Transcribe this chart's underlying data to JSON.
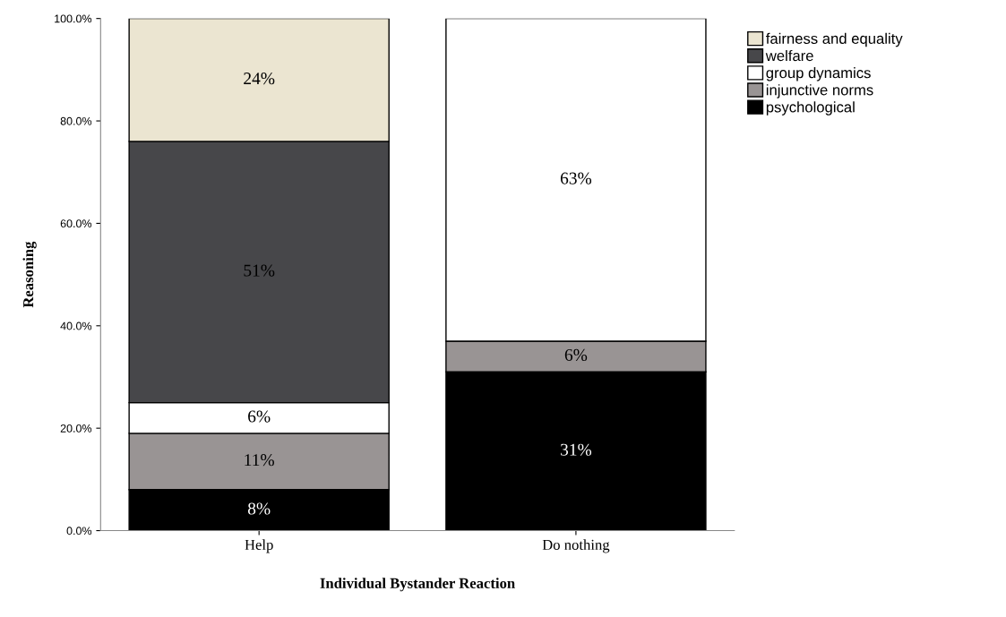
{
  "chart_data": {
    "type": "bar",
    "stacked": true,
    "xlabel": "Individual Bystander Reaction",
    "ylabel": "Reasoning",
    "categories": [
      "Help",
      "Do nothing"
    ],
    "series": [
      {
        "name": "psychological",
        "color": "#000000",
        "values": [
          8,
          31
        ],
        "value_labels": [
          "8%",
          "31%"
        ]
      },
      {
        "name": "injunctive norms",
        "color": "#999494",
        "values": [
          11,
          6
        ],
        "value_labels": [
          "11%",
          "6%"
        ]
      },
      {
        "name": "group dynamics",
        "color": "#ffffff",
        "values": [
          6,
          63
        ],
        "value_labels": [
          "6%",
          "63%"
        ]
      },
      {
        "name": "welfare",
        "color": "#47474a",
        "values": [
          51,
          null
        ],
        "value_labels": [
          "51%",
          null
        ]
      },
      {
        "name": "fairness and equality",
        "color": "#ebe5d1",
        "values": [
          24,
          null
        ],
        "value_labels": [
          "24%",
          null
        ]
      }
    ],
    "ylim": [
      0,
      100
    ],
    "yticks": [
      {
        "value": 0,
        "label": "0.0%"
      },
      {
        "value": 20,
        "label": "20.0%"
      },
      {
        "value": 40,
        "label": "40.0%"
      },
      {
        "value": 60,
        "label": "60.0%"
      },
      {
        "value": 80,
        "label": "80.0%"
      },
      {
        "value": 100,
        "label": "100.0%"
      }
    ],
    "grid": false,
    "legend": "top right"
  }
}
